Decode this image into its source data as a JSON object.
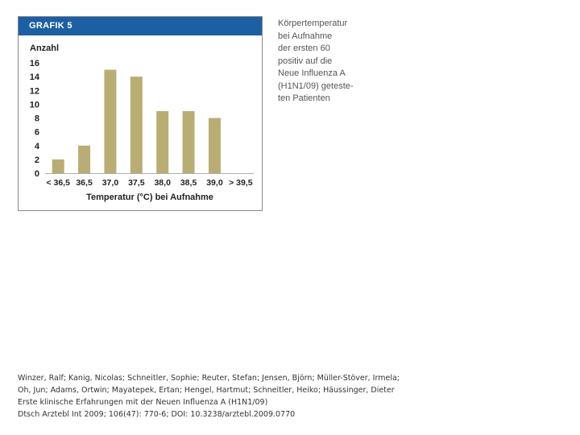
{
  "figure": {
    "label": "GRAFIK 5",
    "header_color": "#1d5fa3",
    "bar_color": "#b9ad74"
  },
  "caption": [
    "Körpertemperatur",
    "bei Aufnahme",
    "der ersten 60",
    "positiv auf die",
    "Neue Influenza A",
    "(H1N1/09) geteste-",
    "ten Patienten"
  ],
  "chart_data": {
    "type": "bar",
    "ylabel": "Anzahl",
    "xlabel": "Temperatur (°C) bei Aufnahme",
    "categories": [
      "< 36,5",
      "36,5",
      "37,0",
      "37,5",
      "38,0",
      "38,5",
      "39,0",
      "> 39,5"
    ],
    "values": [
      2,
      4,
      15,
      14,
      9,
      9,
      8,
      0
    ],
    "ylim": [
      0,
      16
    ],
    "yticks": [
      0,
      2,
      4,
      6,
      8,
      10,
      12,
      14,
      16
    ],
    "grid": false,
    "legend": "none"
  },
  "citation": [
    "Winzer, Ralf; Kanig, Nicolas; Schneitler, Sophie; Reuter, Stefan; Jensen, Björn; Müller-Stöver, Irmela;",
    "Oh, Jun; Adams, Ortwin; Mayatepek, Ertan; Hengel, Hartmut; Schneitler, Heiko; Häussinger, Dieter",
    "Erste klinische Erfahrungen mit der Neuen Influenza A (H1N1/09)",
    "Dtsch Arztebl Int 2009; 106(47): 770-6; DOI: 10.3238/arztebl.2009.0770"
  ]
}
